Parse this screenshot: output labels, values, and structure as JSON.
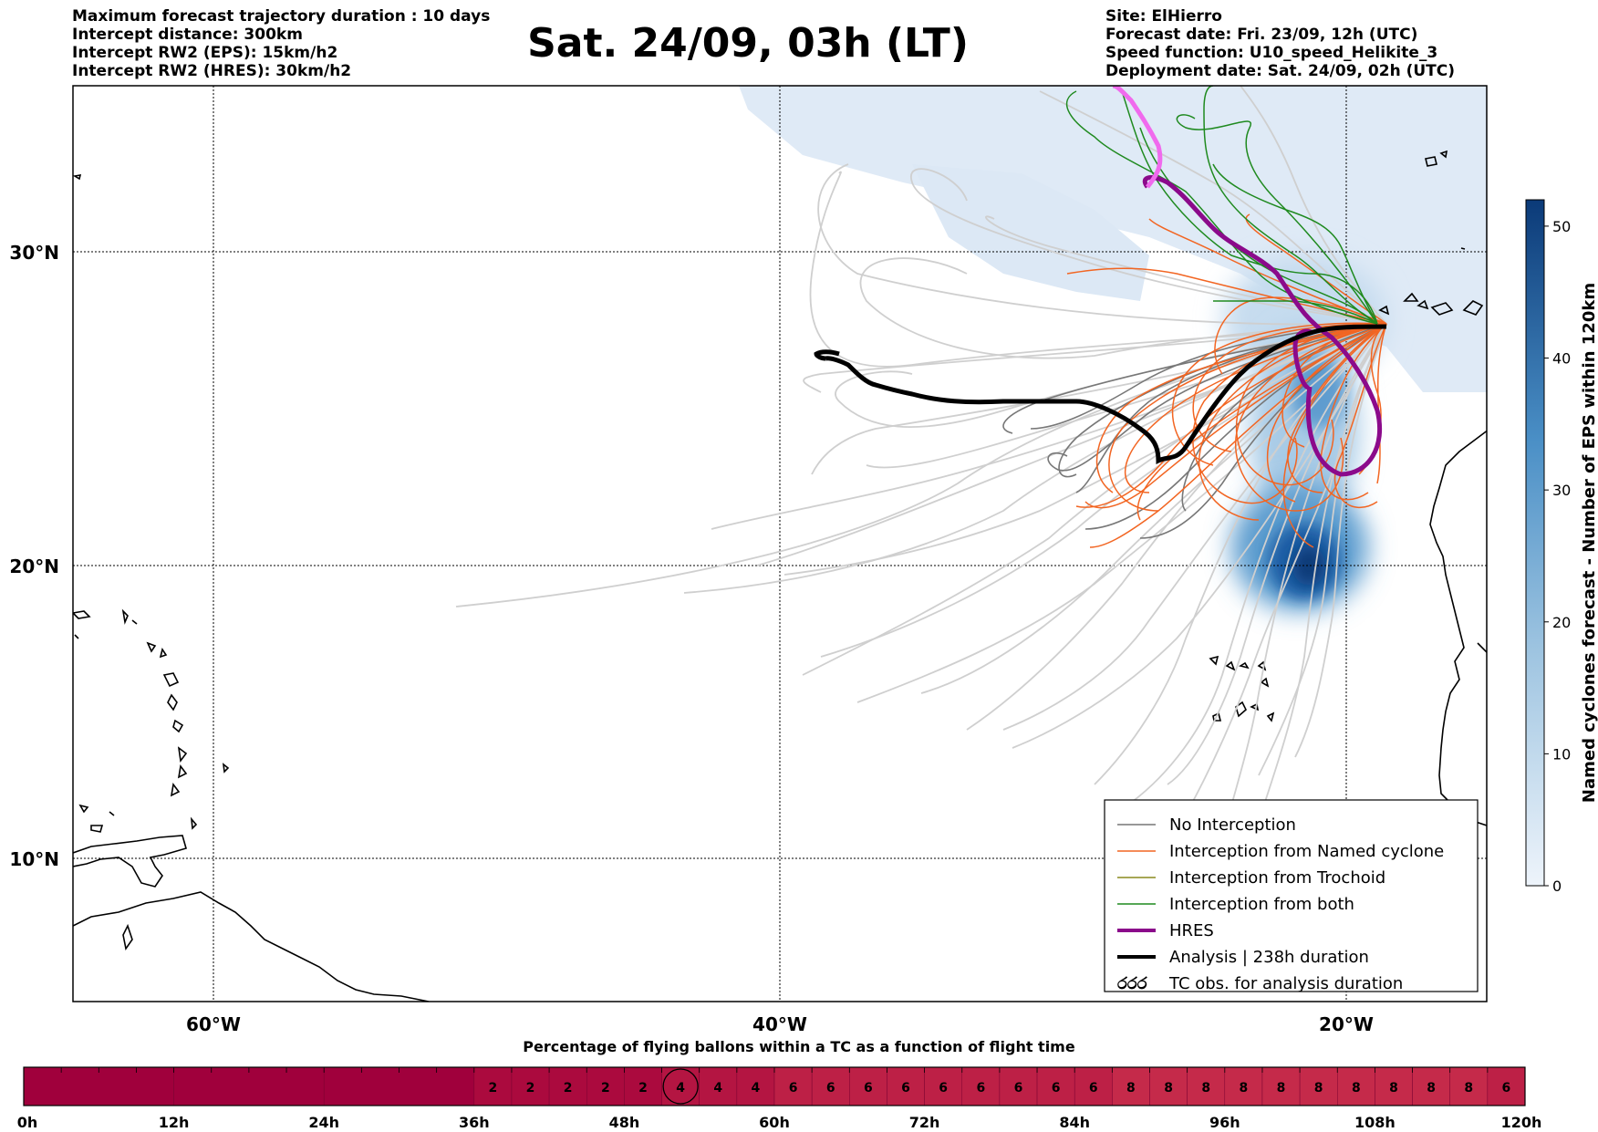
{
  "header": {
    "left": [
      "Maximum forecast trajectory duration : 10 days",
      "Intercept distance: 300km",
      "Intercept RW2 (EPS):  15km/h2",
      "Intercept RW2 (HRES): 30km/h2"
    ],
    "title": "Sat. 24/09, 03h (LT)",
    "right": [
      "Site: ElHierro",
      "Forecast date: Fri. 23/09, 12h (UTC)",
      "Speed function: U10_speed_Helikite_3",
      "Deployment date: Sat. 24/09, 02h (UTC)"
    ]
  },
  "map": {
    "lat_labels": [
      "30°N",
      "20°N",
      "10°N"
    ],
    "lon_labels": [
      "60°W",
      "40°W",
      "20°W"
    ]
  },
  "legend": {
    "items": [
      {
        "label": "No Interception",
        "color": "#777777"
      },
      {
        "label": "Interception from Named cyclone",
        "color": "#f26522"
      },
      {
        "label": "Interception from Trochoid",
        "color": "#8a8a1e"
      },
      {
        "label": "Interception from both",
        "color": "#1f8a1f"
      },
      {
        "label": "HRES",
        "color": "#8b0a8b"
      },
      {
        "label": "Analysis | 238h duration",
        "color": "#000000"
      },
      {
        "label": "TC obs. for analysis duration",
        "icon": "cyclone-symbol-icon",
        "symbol": "ර"
      }
    ]
  },
  "colorbar": {
    "label": "Named cyclones forecast - Number of EPS within 120km",
    "ticks": [
      "0",
      "10",
      "20",
      "30",
      "40",
      "50"
    ],
    "max": 52,
    "color_low": "#e8f1fb",
    "color_high": "#0b3a78"
  },
  "timebar": {
    "title": "Percentage of flying ballons within a TC as a function of flight time",
    "tick_labels": [
      "0h",
      "12h",
      "24h",
      "36h",
      "48h",
      "60h",
      "72h",
      "84h",
      "96h",
      "108h",
      "120h"
    ],
    "cells": [
      {
        "from": 0,
        "to": 12,
        "value": ""
      },
      {
        "from": 12,
        "to": 24,
        "value": ""
      },
      {
        "from": 24,
        "to": 36,
        "value": ""
      },
      {
        "from": 36,
        "to": 39,
        "value": "2"
      },
      {
        "from": 39,
        "to": 42,
        "value": "2"
      },
      {
        "from": 42,
        "to": 45,
        "value": "2"
      },
      {
        "from": 45,
        "to": 48,
        "value": "2"
      },
      {
        "from": 48,
        "to": 51,
        "value": "2"
      },
      {
        "from": 51,
        "to": 54,
        "value": "4"
      },
      {
        "from": 54,
        "to": 57,
        "value": "4"
      },
      {
        "from": 57,
        "to": 60,
        "value": "4"
      },
      {
        "from": 60,
        "to": 63,
        "value": "6"
      },
      {
        "from": 63,
        "to": 66,
        "value": "6"
      },
      {
        "from": 66,
        "to": 69,
        "value": "6"
      },
      {
        "from": 69,
        "to": 72,
        "value": "6"
      },
      {
        "from": 72,
        "to": 75,
        "value": "6"
      },
      {
        "from": 75,
        "to": 78,
        "value": "6"
      },
      {
        "from": 78,
        "to": 81,
        "value": "6"
      },
      {
        "from": 81,
        "to": 84,
        "value": "6"
      },
      {
        "from": 84,
        "to": 87,
        "value": "6"
      },
      {
        "from": 87,
        "to": 90,
        "value": "8"
      },
      {
        "from": 90,
        "to": 93,
        "value": "8"
      },
      {
        "from": 93,
        "to": 96,
        "value": "8"
      },
      {
        "from": 96,
        "to": 99,
        "value": "8"
      },
      {
        "from": 99,
        "to": 102,
        "value": "8"
      },
      {
        "from": 102,
        "to": 105,
        "value": "8"
      },
      {
        "from": 105,
        "to": 108,
        "value": "8"
      },
      {
        "from": 108,
        "to": 111,
        "value": "8"
      },
      {
        "from": 111,
        "to": 114,
        "value": "8"
      },
      {
        "from": 114,
        "to": 117,
        "value": "8"
      },
      {
        "from": 117,
        "to": 120,
        "value": "6"
      }
    ],
    "current_hour_cell_index": 8,
    "colors": {
      "0": "#a0003c",
      "2": "#ab0a3e",
      "4": "#b41542",
      "6": "#bd2046",
      "8": "#c52a4a"
    }
  }
}
